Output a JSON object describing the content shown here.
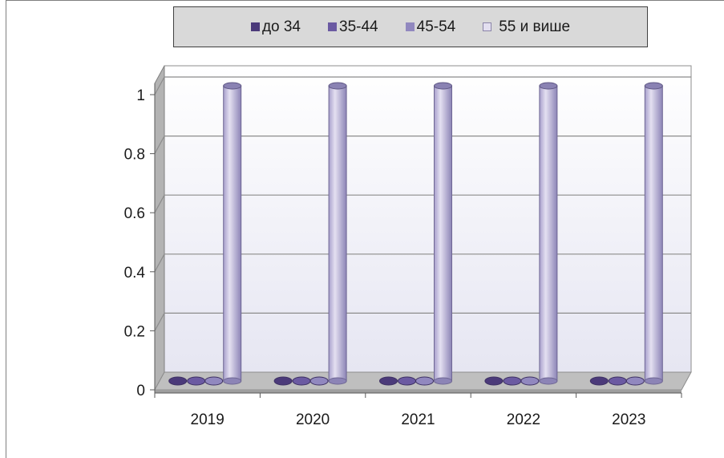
{
  "chart_data": {
    "type": "bar",
    "categories": [
      "2019",
      "2020",
      "2021",
      "2022",
      "2023"
    ],
    "series": [
      {
        "name": "до 34",
        "values": [
          0,
          0,
          0,
          0,
          0
        ],
        "color": "#4b3a7a"
      },
      {
        "name": "35-44",
        "values": [
          0,
          0,
          0,
          0,
          0
        ],
        "color": "#6b5aa2"
      },
      {
        "name": "45-54",
        "values": [
          0,
          0,
          0,
          0,
          0
        ],
        "color": "#9188bf"
      },
      {
        "name": "55 и више",
        "values": [
          1,
          1,
          1,
          1,
          1
        ],
        "color": "#cdc7e2"
      }
    ],
    "yticks": [
      "0",
      "0.2",
      "0.4",
      "0.6",
      "0.8",
      "1"
    ],
    "ylim": [
      0,
      1
    ],
    "grid": true,
    "legend_position": "top",
    "style": "3d-cylinder"
  }
}
